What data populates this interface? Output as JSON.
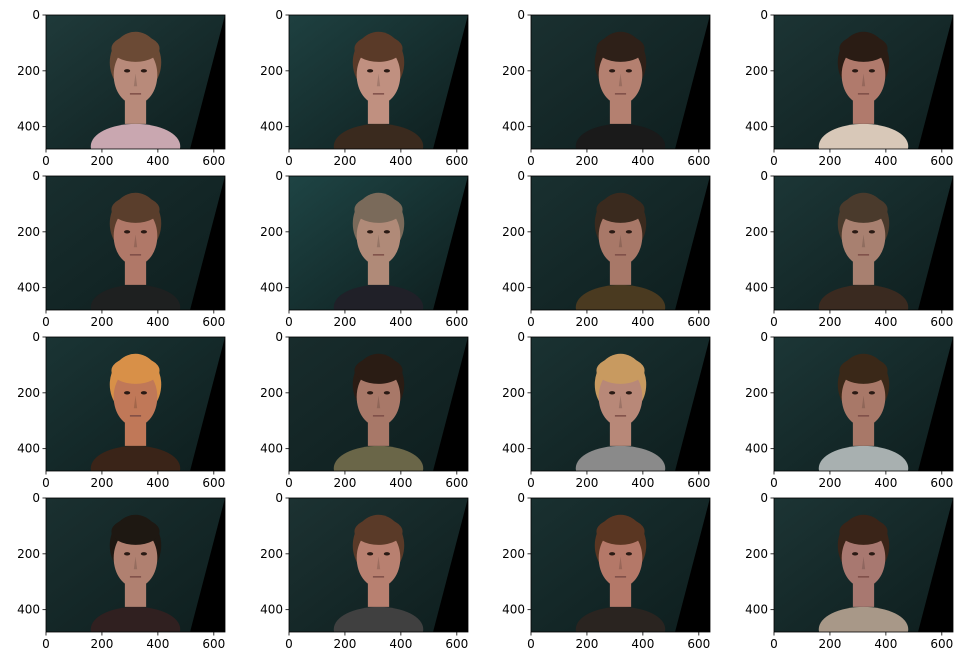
{
  "figure": {
    "rows": 4,
    "cols": 4,
    "x_ticks": [
      "0",
      "200",
      "400",
      "600"
    ],
    "y_ticks": [
      "0",
      "200",
      "400"
    ],
    "x_tick_values": [
      0,
      200,
      400,
      600
    ],
    "y_tick_values": [
      0,
      200,
      400
    ],
    "image_width": 640,
    "image_height": 480,
    "panels": [
      {
        "name": "face-1",
        "bg": "#1f3a3a",
        "skin": "#b88a7a",
        "hair": "#6b4a35",
        "shirt": "#c9a7b0"
      },
      {
        "name": "face-2",
        "bg": "#1e4040",
        "skin": "#c09080",
        "hair": "#5a3a28",
        "shirt": "#3a2a1e"
      },
      {
        "name": "face-3",
        "bg": "#1a3030",
        "skin": "#b48070",
        "hair": "#2e2018",
        "shirt": "#1a1a1a"
      },
      {
        "name": "face-4",
        "bg": "#1c3434",
        "skin": "#b07a6c",
        "hair": "#2a1c14",
        "shirt": "#d8c8b8"
      },
      {
        "name": "face-5",
        "bg": "#182e2e",
        "skin": "#b07868",
        "hair": "#5a3e2c",
        "shirt": "#1e2020"
      },
      {
        "name": "face-6",
        "bg": "#1e4444",
        "skin": "#b08a78",
        "hair": "#7a6a5a",
        "shirt": "#202028"
      },
      {
        "name": "face-7",
        "bg": "#193030",
        "skin": "#a87868",
        "hair": "#3a2a1e",
        "shirt": "#4a3a20"
      },
      {
        "name": "face-8",
        "bg": "#1c3636",
        "skin": "#a88070",
        "hair": "#4a3a2c",
        "shirt": "#3a2a20"
      },
      {
        "name": "face-9",
        "bg": "#1a3434",
        "skin": "#c07858",
        "hair": "#d89048",
        "shirt": "#3a2418"
      },
      {
        "name": "face-10",
        "bg": "#182c2c",
        "skin": "#a87868",
        "hair": "#2a1c14",
        "shirt": "#6a6648"
      },
      {
        "name": "face-11",
        "bg": "#1a3232",
        "skin": "#b88878",
        "hair": "#c89a60",
        "shirt": "#8a8a8a"
      },
      {
        "name": "face-12",
        "bg": "#1c3636",
        "skin": "#a87868",
        "hair": "#3a2818",
        "shirt": "#a8b0b0"
      },
      {
        "name": "face-13",
        "bg": "#1a3030",
        "skin": "#b08070",
        "hair": "#1e1812",
        "shirt": "#302020"
      },
      {
        "name": "face-14",
        "bg": "#1c3232",
        "skin": "#b88070",
        "hair": "#5a3a28",
        "shirt": "#404040"
      },
      {
        "name": "face-15",
        "bg": "#193030",
        "skin": "#b47868",
        "hair": "#5a3622",
        "shirt": "#2a2420"
      },
      {
        "name": "face-16",
        "bg": "#1c3434",
        "skin": "#a87870",
        "hair": "#3a2418",
        "shirt": "#a89888"
      }
    ]
  }
}
